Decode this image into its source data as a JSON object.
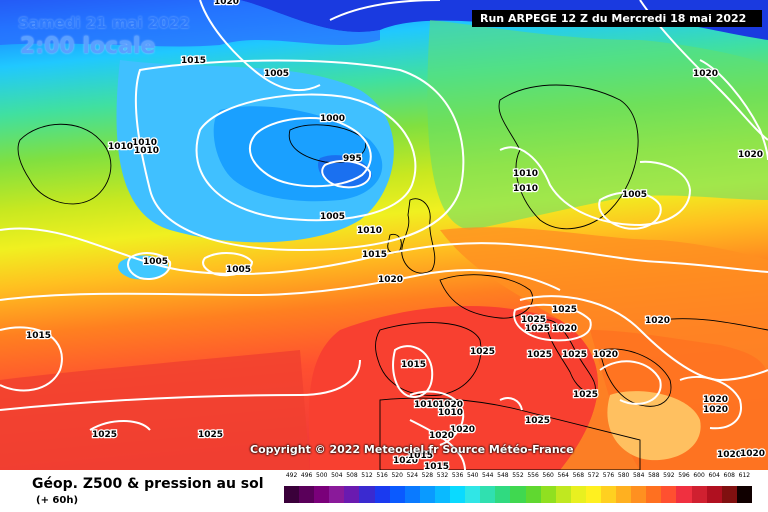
{
  "header": {
    "date": "Samedi 21 mai 2022",
    "time": "2:00 locale",
    "run": "Run ARPEGE 12 Z du Mercredi 18 mai 2022"
  },
  "map": {
    "layer": "geopotential-500hPa-shading",
    "overlay": "surface-pressure-isobars",
    "isobar_color": "#ffffff",
    "coast_color": "#000000",
    "pressure_labels": [
      {
        "id": "p1",
        "text": "1020"
      },
      {
        "id": "p2",
        "text": "1015"
      },
      {
        "id": "p3",
        "text": "1005"
      },
      {
        "id": "p4",
        "text": "1000"
      },
      {
        "id": "p5",
        "text": "1010"
      },
      {
        "id": "p6",
        "text": "1010"
      },
      {
        "id": "p7",
        "text": "995"
      },
      {
        "id": "p8",
        "text": "1005"
      },
      {
        "id": "p9",
        "text": "1010"
      },
      {
        "id": "p10",
        "text": "1015"
      },
      {
        "id": "p11",
        "text": "1020"
      },
      {
        "id": "p12",
        "text": "1005"
      },
      {
        "id": "p13",
        "text": "1005"
      },
      {
        "id": "p14",
        "text": "1015"
      },
      {
        "id": "p15",
        "text": "1025"
      },
      {
        "id": "p16",
        "text": "1025"
      },
      {
        "id": "p17",
        "text": "1020"
      },
      {
        "id": "p18",
        "text": "1020"
      },
      {
        "id": "p19",
        "text": "1010"
      },
      {
        "id": "p20",
        "text": "1010"
      },
      {
        "id": "p21",
        "text": "1005"
      },
      {
        "id": "p22",
        "text": "1025"
      },
      {
        "id": "p23",
        "text": "1020"
      },
      {
        "id": "p24",
        "text": "1025"
      },
      {
        "id": "p25",
        "text": "1025"
      },
      {
        "id": "p26",
        "text": "1025"
      },
      {
        "id": "p27",
        "text": "1020"
      },
      {
        "id": "p28",
        "text": "1020"
      },
      {
        "id": "p29",
        "text": "1015"
      },
      {
        "id": "p30",
        "text": "1010"
      },
      {
        "id": "p31",
        "text": "1020"
      },
      {
        "id": "p32",
        "text": "1020"
      },
      {
        "id": "p33",
        "text": "1025"
      },
      {
        "id": "p34",
        "text": "1025"
      },
      {
        "id": "p35",
        "text": "1020"
      },
      {
        "id": "p36",
        "text": "1020"
      },
      {
        "id": "p37",
        "text": "1025"
      },
      {
        "id": "p38",
        "text": "1020"
      },
      {
        "id": "p39",
        "text": "1015"
      },
      {
        "id": "p40",
        "text": "1015"
      },
      {
        "id": "p41",
        "text": "1020"
      },
      {
        "id": "p42",
        "text": "1020"
      },
      {
        "id": "p43",
        "text": "1020"
      },
      {
        "id": "p44",
        "text": "1025"
      },
      {
        "id": "p45",
        "text": "1010"
      },
      {
        "id": "p46",
        "text": "1010"
      }
    ]
  },
  "copyright": "Copyright © 2022 Meteociel.fr Source Météo-France",
  "legend": {
    "title": "Géop. Z500 & pression au sol",
    "lead": "(+ 60h)",
    "scale_labels": [
      "492",
      "496",
      "500",
      "504",
      "508",
      "512",
      "516",
      "520",
      "524",
      "528",
      "532",
      "536",
      "540",
      "544",
      "548",
      "552",
      "556",
      "560",
      "564",
      "568",
      "572",
      "576",
      "580",
      "584",
      "588",
      "592",
      "596",
      "600",
      "604",
      "608",
      "612"
    ],
    "scale_colors": [
      "#3a003a",
      "#5a005a",
      "#7a007a",
      "#8a1a9a",
      "#6a1ab0",
      "#3a2ad0",
      "#1a3af0",
      "#0a5aff",
      "#0a7aff",
      "#0a9aff",
      "#0abaff",
      "#0adaff",
      "#30e6e6",
      "#30e0b0",
      "#30da80",
      "#40d850",
      "#60d830",
      "#90e020",
      "#c0e820",
      "#e8f020",
      "#fff020",
      "#ffd020",
      "#ffb020",
      "#ff9020",
      "#ff7020",
      "#ff5030",
      "#f03040",
      "#d02030",
      "#b01020",
      "#801010",
      "#100000"
    ]
  }
}
